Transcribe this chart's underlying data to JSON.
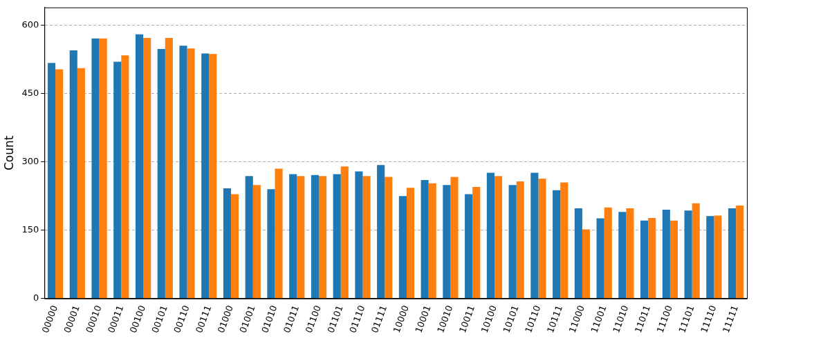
{
  "chart_data": {
    "type": "bar",
    "ylabel": "Count",
    "categories": [
      "00000",
      "00001",
      "00010",
      "00011",
      "00100",
      "00101",
      "00110",
      "00111",
      "01000",
      "01001",
      "01010",
      "01011",
      "01100",
      "01101",
      "01110",
      "01111",
      "10000",
      "10001",
      "10010",
      "10011",
      "10100",
      "10101",
      "10110",
      "10111",
      "11000",
      "11001",
      "11010",
      "11011",
      "11100",
      "11101",
      "11110",
      "11111"
    ],
    "series": [
      {
        "color": "#1f77b4",
        "values": [
          517,
          545,
          571,
          520,
          580,
          548,
          555,
          538,
          242,
          269,
          240,
          273,
          271,
          273,
          279,
          293,
          225,
          260,
          249,
          229,
          276,
          249,
          276,
          238,
          198,
          176,
          190,
          171,
          195,
          193,
          181,
          198
        ]
      },
      {
        "color": "#ff7f0e",
        "values": [
          503,
          506,
          571,
          534,
          572,
          572,
          549,
          537,
          229,
          249,
          285,
          269,
          269,
          290,
          269,
          267,
          243,
          253,
          267,
          245,
          269,
          257,
          263,
          255,
          152,
          200,
          198,
          177,
          171,
          209,
          182,
          204
        ]
      }
    ],
    "ylim": [
      0,
      639
    ],
    "yticks": [
      0,
      150,
      300,
      450,
      600
    ],
    "grid": "y",
    "legend": false
  }
}
